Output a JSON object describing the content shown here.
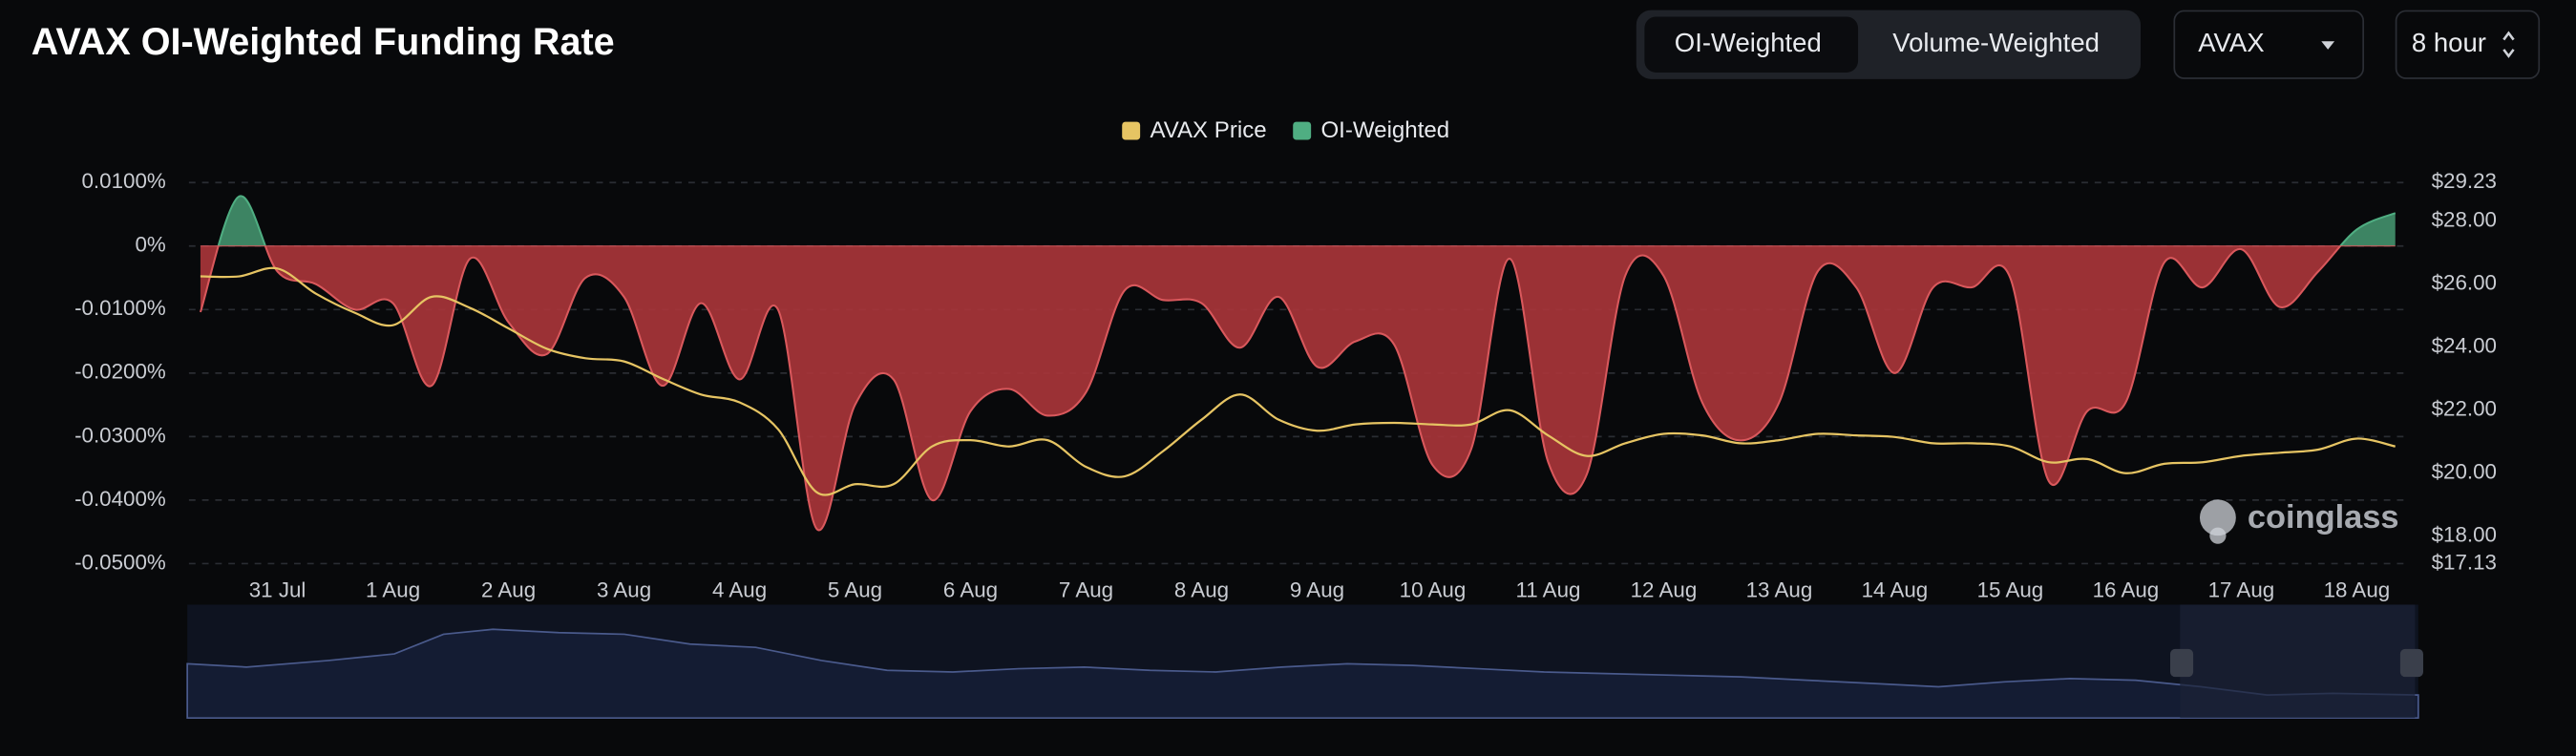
{
  "header": {
    "title": "AVAX OI-Weighted Funding Rate",
    "tabs": [
      "OI-Weighted",
      "Volume-Weighted"
    ],
    "coin": "AVAX",
    "interval": "8 hour"
  },
  "watermark": "coinglass",
  "chart_data": {
    "type": "area",
    "categories": [
      null,
      null,
      "31 Jul",
      null,
      null,
      "1 Aug",
      null,
      null,
      "2 Aug",
      null,
      null,
      "3 Aug",
      null,
      null,
      "4 Aug",
      null,
      null,
      "5 Aug",
      null,
      null,
      "6 Aug",
      null,
      null,
      "7 Aug",
      null,
      null,
      "8 Aug",
      null,
      null,
      "9 Aug",
      null,
      null,
      "10 Aug",
      null,
      null,
      "11 Aug",
      null,
      null,
      "12 Aug",
      null,
      null,
      "13 Aug",
      null,
      null,
      "14 Aug",
      null,
      null,
      "15 Aug",
      null,
      null,
      "16 Aug",
      null,
      null,
      "17 Aug",
      null,
      null,
      "18 Aug",
      null
    ],
    "series": [
      {
        "name": "AVAX Price",
        "color": "#e6c463",
        "axis": "y2",
        "values": [
          26.25,
          26.25,
          26.5,
          25.7,
          25.1,
          24.7,
          25.6,
          25.25,
          24.6,
          23.95,
          23.65,
          23.55,
          23.0,
          22.5,
          22.25,
          21.4,
          19.4,
          19.65,
          19.65,
          20.85,
          21.05,
          20.85,
          21.05,
          20.2,
          19.9,
          20.7,
          21.7,
          22.5,
          21.7,
          21.35,
          21.55,
          21.6,
          21.55,
          21.55,
          22.0,
          21.2,
          20.55,
          20.95,
          21.25,
          21.2,
          20.95,
          21.05,
          21.25,
          21.2,
          21.15,
          20.95,
          20.95,
          20.85,
          20.35,
          20.45,
          20.0,
          20.3,
          20.35,
          20.55,
          20.65,
          20.75,
          21.1,
          20.85
        ]
      },
      {
        "name": "OI-Weighted",
        "color": "#4fae82",
        "negative_color": "#a8353a",
        "values": [
          -0.0104,
          0.0078,
          -0.004,
          -0.006,
          -0.01,
          -0.009,
          -0.022,
          -0.002,
          -0.012,
          -0.017,
          -0.005,
          -0.008,
          -0.022,
          -0.009,
          -0.021,
          -0.01,
          -0.0445,
          -0.025,
          -0.021,
          -0.04,
          -0.026,
          -0.0225,
          -0.0267,
          -0.023,
          -0.007,
          -0.0085,
          -0.009,
          -0.016,
          -0.008,
          -0.019,
          -0.015,
          -0.0155,
          -0.0345,
          -0.032,
          -0.002,
          -0.034,
          -0.036,
          -0.0047,
          -0.0047,
          -0.0246,
          -0.0306,
          -0.0246,
          -0.004,
          -0.0065,
          -0.02,
          -0.0065,
          -0.0065,
          -0.005,
          -0.037,
          -0.026,
          -0.0246,
          -0.0026,
          -0.0065,
          -0.0005,
          -0.0096,
          -0.004,
          0.0026,
          0.0052
        ]
      }
    ],
    "ylim": [
      -0.05,
      0.01
    ],
    "yticks": [
      {
        "value": 0.01,
        "label": "0.0100%"
      },
      {
        "value": 0,
        "label": "0%"
      },
      {
        "value": -0.01,
        "label": "-0.0100%"
      },
      {
        "value": -0.02,
        "label": "-0.0200%"
      },
      {
        "value": -0.03,
        "label": "-0.0300%"
      },
      {
        "value": -0.04,
        "label": "-0.0400%"
      },
      {
        "value": -0.05,
        "label": "-0.0500%"
      }
    ],
    "y2lim": [
      17.13,
      29.23
    ],
    "y2ticks": [
      {
        "value": 29.23,
        "label": "$29.23"
      },
      {
        "value": 28,
        "label": "$28.00"
      },
      {
        "value": 26,
        "label": "$26.00"
      },
      {
        "value": 24,
        "label": "$24.00"
      },
      {
        "value": 22,
        "label": "$22.00"
      },
      {
        "value": 20,
        "label": "$20.00"
      },
      {
        "value": 18,
        "label": "$18.00"
      },
      {
        "value": 17.13,
        "label": "$17.13"
      }
    ],
    "grid": true,
    "legend": "top"
  }
}
